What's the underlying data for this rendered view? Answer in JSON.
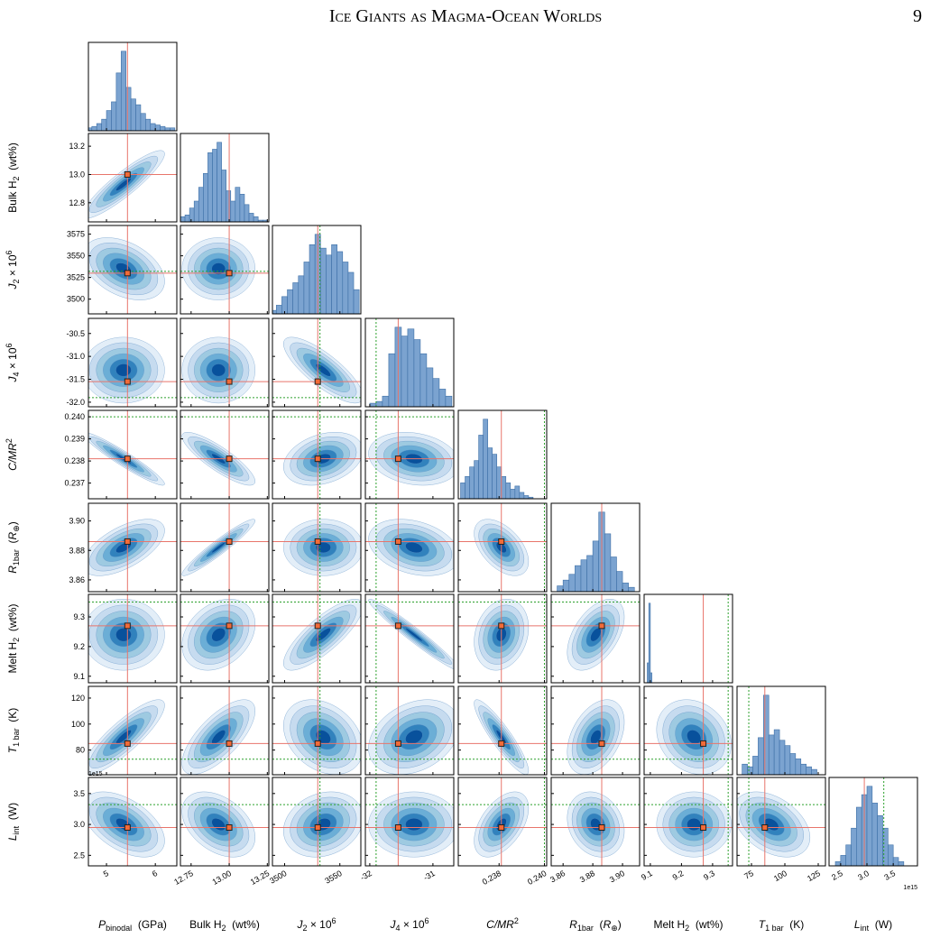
{
  "header": {
    "title": "Ice Giants as Magma-Ocean Worlds",
    "page": "9"
  },
  "chart_data": {
    "type": "corner",
    "contour_colors": [
      "#e3eef8",
      "#c6dbef",
      "#9ecae1",
      "#6baed6",
      "#3182bd",
      "#08519c"
    ],
    "hist_color": "#7ba3d0",
    "truth_color": "#e8756b",
    "marker_color": "#f26b38",
    "constraint_color": "#2ca02c",
    "params": [
      {
        "label": [
          [
            "P",
            "i"
          ],
          [
            "binodal",
            "sub"
          ],
          [
            "  (GPa)",
            "plain"
          ]
        ],
        "xlim": [
          4.63,
          6.44
        ],
        "xticks": [
          5,
          6
        ],
        "truth": 5.43,
        "constraints": [],
        "mean": 5.35,
        "std": 0.35,
        "hist": {
          "bins": [
            4.6,
            4.7,
            4.8,
            4.9,
            5.0,
            5.1,
            5.2,
            5.3,
            5.4,
            5.5,
            5.6,
            5.7,
            5.8,
            5.9,
            6.0,
            6.1,
            6.2,
            6.3,
            6.4
          ],
          "counts": [
            2,
            3,
            5,
            8,
            14,
            20,
            40,
            55,
            30,
            22,
            18,
            12,
            8,
            5,
            4,
            3,
            2,
            2
          ]
        }
      },
      {
        "label": [
          [
            "Bulk H",
            "plain"
          ],
          [
            "2",
            "sub"
          ],
          [
            "  (wt%)",
            "plain"
          ]
        ],
        "xlim": [
          12.68,
          13.26
        ],
        "ylim": [
          12.665,
          13.29
        ],
        "xticks": [
          12.75,
          {
            "value": 13.0,
            "label": "13.00"
          },
          13.25
        ],
        "yticks": [
          12.8,
          {
            "value": 13.0,
            "label": "13.0"
          },
          13.2
        ],
        "truth": 13.0,
        "constraints": [],
        "mean": 12.93,
        "std": 0.1,
        "hist": {
          "bins": [
            12.65,
            12.68,
            12.71,
            12.74,
            12.77,
            12.8,
            12.83,
            12.86,
            12.89,
            12.92,
            12.95,
            12.98,
            13.01,
            13.04,
            13.07,
            13.1,
            13.13,
            13.16,
            13.19,
            13.22,
            13.25
          ],
          "counts": [
            1,
            3,
            4,
            8,
            12,
            20,
            28,
            40,
            42,
            46,
            30,
            18,
            12,
            20,
            16,
            10,
            5,
            3,
            1,
            1
          ]
        }
      },
      {
        "label": [
          [
            "J",
            "i"
          ],
          [
            "2",
            "sub"
          ],
          [
            " × 10",
            "plain"
          ],
          [
            "6",
            "sup"
          ]
        ],
        "xlim": [
          3489,
          3569
        ],
        "ylim": [
          3483,
          3585
        ],
        "xticks": [
          3500,
          3550
        ],
        "yticks": [
          3500,
          3525,
          3550,
          3575
        ],
        "truth": 3530,
        "constraints": [
          3532
        ],
        "mean": 3535,
        "std": 15,
        "hist": {
          "bins": [
            3487.5,
            3492.5,
            3497.5,
            3502.5,
            3507.5,
            3512.5,
            3517.5,
            3522.5,
            3527.5,
            3532.5,
            3537.5,
            3542.5,
            3547.5,
            3552.5,
            3557.5,
            3562.5,
            3567.5
          ],
          "counts": [
            2,
            5,
            10,
            14,
            18,
            22,
            30,
            40,
            46,
            38,
            34,
            40,
            36,
            30,
            24,
            14
          ]
        }
      },
      {
        "label": [
          [
            "J",
            "i"
          ],
          [
            "4",
            "sub"
          ],
          [
            " × 10",
            "plain"
          ],
          [
            "6",
            "sup"
          ]
        ],
        "xlim": [
          -32.07,
          -30.67
        ],
        "ylim": [
          -32.1,
          -30.17
        ],
        "xticks": [
          -32,
          -31
        ],
        "yticks": [
          -30.5,
          {
            "value": -31.0,
            "label": "-31.0"
          },
          -31.5,
          {
            "value": -32.0,
            "label": "-32.0"
          }
        ],
        "truth": -31.55,
        "constraints": [
          -31.9
        ],
        "mean": -31.3,
        "std": 0.3,
        "hist": {
          "bins": [
            -32.0,
            -31.9,
            -31.8,
            -31.7,
            -31.6,
            -31.5,
            -31.4,
            -31.3,
            -31.2,
            -31.1,
            -31.0,
            -30.9,
            -30.8,
            -30.7
          ],
          "counts": [
            2,
            3,
            6,
            30,
            45,
            40,
            44,
            38,
            30,
            22,
            16,
            10,
            6
          ]
        }
      },
      {
        "label": [
          [
            "C/MR",
            "i"
          ],
          [
            "2",
            "sup"
          ]
        ],
        "xlim": [
          0.2362,
          0.2401
        ],
        "ylim": [
          0.23629,
          0.24029
        ],
        "xticks": [
          0.238,
          {
            "value": 0.24,
            "label": "0.240"
          }
        ],
        "yticks": [
          0.237,
          0.238,
          0.239,
          {
            "value": 0.24,
            "label": "0.240"
          }
        ],
        "truth": 0.2381,
        "constraints": [
          0.24
        ],
        "mean": 0.2381,
        "std": 0.0005,
        "hist": {
          "bins": [
            0.2363,
            0.2365,
            0.2367,
            0.2369,
            0.2371,
            0.2373,
            0.2375,
            0.2377,
            0.2379,
            0.2381,
            0.2383,
            0.2385,
            0.2387,
            0.2389,
            0.2391,
            0.2393,
            0.2395
          ],
          "counts": [
            10,
            14,
            20,
            24,
            40,
            50,
            32,
            28,
            20,
            14,
            10,
            6,
            8,
            4,
            2,
            1
          ]
        }
      },
      {
        "label": [
          [
            "R",
            "i"
          ],
          [
            "1bar",
            "sub"
          ],
          [
            "  (",
            "plain"
          ],
          [
            "R",
            "i"
          ],
          [
            "⊕",
            "sub"
          ],
          [
            ")",
            "plain"
          ]
        ],
        "xlim": [
          3.852,
          3.9115
        ],
        "ylim": [
          3.852,
          3.912
        ],
        "xticks": [
          3.86,
          3.88,
          {
            "value": 3.9,
            "label": "3.90"
          }
        ],
        "yticks": [
          3.86,
          3.88,
          {
            "value": 3.9,
            "label": "3.90"
          }
        ],
        "truth": 3.886,
        "constraints": [
          3.886
        ],
        "mean": 3.882,
        "std": 0.008,
        "hist": {
          "bins": [
            3.856,
            3.86,
            3.864,
            3.868,
            3.872,
            3.876,
            3.88,
            3.884,
            3.888,
            3.892,
            3.896,
            3.9,
            3.904,
            3.908
          ],
          "counts": [
            4,
            8,
            12,
            18,
            22,
            25,
            35,
            55,
            40,
            24,
            14,
            6,
            3
          ]
        }
      },
      {
        "label": [
          [
            "Melt H",
            "plain"
          ],
          [
            "2",
            "sub"
          ],
          [
            "  (wt%)",
            "plain"
          ]
        ],
        "xlim": [
          9.08,
          9.364
        ],
        "ylim": [
          9.078,
          9.376
        ],
        "xticks": [
          9.1,
          9.2,
          9.3
        ],
        "yticks": [
          9.1,
          9.2,
          9.3
        ],
        "truth": 9.27,
        "constraints": [
          9.35
        ],
        "mean": 9.24,
        "std": 0.05,
        "hist": {
          "bins": [
            9.09,
            9.095,
            9.1,
            9.105
          ],
          "counts": [
            20,
            80,
            10
          ]
        }
      },
      {
        "label": [
          [
            "T",
            "i"
          ],
          [
            "1 bar",
            "sub"
          ],
          [
            "  (K)",
            "plain"
          ]
        ],
        "xlim": [
          64.2,
          130.4
        ],
        "ylim": [
          61,
          129
        ],
        "xticks": [
          75,
          100,
          125
        ],
        "yticks": [
          80,
          100,
          120
        ],
        "truth": 85,
        "constraints": [
          73
        ],
        "mean": 90,
        "std": 12,
        "hist": {
          "bins": [
            68,
            72,
            76,
            80,
            84,
            88,
            92,
            96,
            100,
            104,
            108,
            112,
            116,
            120,
            124
          ],
          "counts": [
            8,
            6,
            14,
            28,
            60,
            30,
            34,
            26,
            22,
            16,
            12,
            8,
            6,
            4
          ]
        }
      },
      {
        "label": [
          [
            "L",
            "i"
          ],
          [
            "int",
            "sub"
          ],
          [
            "  (W)",
            "plain"
          ]
        ],
        "xlim": [
          2.28,
          3.96
        ],
        "ylim": [
          2.33,
          3.76
        ],
        "offset": "1e15",
        "xticks": [
          2.5,
          {
            "value": 3.0,
            "label": "3.0"
          },
          3.5
        ],
        "yticks": [
          2.5,
          {
            "value": 3.0,
            "label": "3.0"
          },
          3.5
        ],
        "truth": 2.95,
        "constraints": [
          3.32
        ],
        "mean": 3.0,
        "std": 0.22,
        "hist": {
          "bins": [
            2.4,
            2.5,
            2.6,
            2.7,
            2.8,
            2.9,
            3.0,
            3.1,
            3.2,
            3.3,
            3.4,
            3.5,
            3.6,
            3.7
          ],
          "counts": [
            2,
            5,
            10,
            18,
            28,
            34,
            38,
            30,
            24,
            18,
            10,
            4,
            2
          ]
        }
      }
    ],
    "corr": [
      [],
      [
        0.9
      ],
      [
        -0.4,
        0.0
      ],
      [
        0.0,
        0.0,
        -0.8
      ],
      [
        -0.95,
        -0.85,
        0.3,
        -0.2
      ],
      [
        0.6,
        0.95,
        0.0,
        -0.3,
        -0.5
      ],
      [
        0.0,
        0.3,
        0.8,
        -0.97,
        0.2,
        0.5
      ],
      [
        0.85,
        0.7,
        -0.3,
        0.3,
        -0.9,
        0.4,
        -0.2
      ],
      [
        -0.5,
        -0.4,
        0.2,
        0.0,
        0.5,
        -0.2,
        0.0,
        -0.4
      ]
    ]
  }
}
